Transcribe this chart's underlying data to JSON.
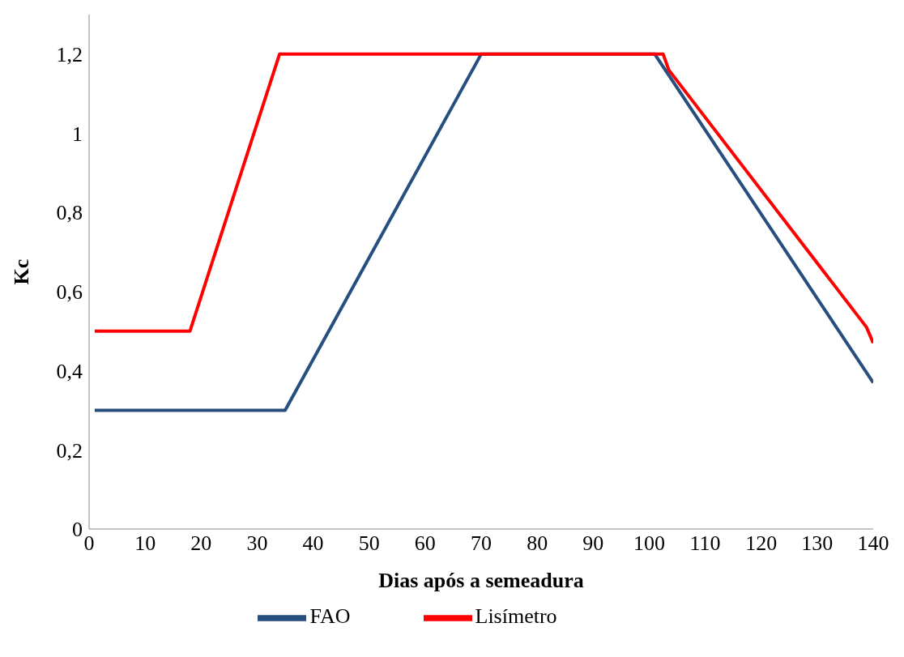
{
  "chart_data": {
    "type": "line",
    "xlabel": "Dias após a semeadura",
    "ylabel": "Kc",
    "xlim": [
      0,
      140
    ],
    "xticks": [
      0,
      10,
      20,
      30,
      40,
      50,
      60,
      70,
      80,
      90,
      100,
      110,
      120,
      130,
      140
    ],
    "ylim": [
      0,
      1.3
    ],
    "yticks": [
      0,
      {
        "value": 0.2,
        "label": "0,2"
      },
      {
        "value": 0.4,
        "label": "0,4"
      },
      {
        "value": 0.6,
        "label": "0,6"
      },
      {
        "value": 0.8,
        "label": "0,8"
      },
      1,
      {
        "value": 1.2,
        "label": "1,2"
      }
    ],
    "grid": false,
    "legend": "bottom",
    "marker": "none",
    "line_style": "solid",
    "series": [
      {
        "name": "FAO",
        "color": "#264f7f",
        "x": [
          1,
          35,
          70,
          101,
          140
        ],
        "values": [
          0.3,
          0.3,
          1.2,
          1.2,
          0.37
        ]
      },
      {
        "name": "Lisímetro",
        "color": "#ff0000",
        "x": [
          1,
          18,
          34,
          102.5,
          103.5,
          138.8,
          140
        ],
        "values": [
          0.5,
          0.5,
          1.2,
          1.2,
          1.16,
          0.51,
          0.47
        ]
      }
    ]
  }
}
